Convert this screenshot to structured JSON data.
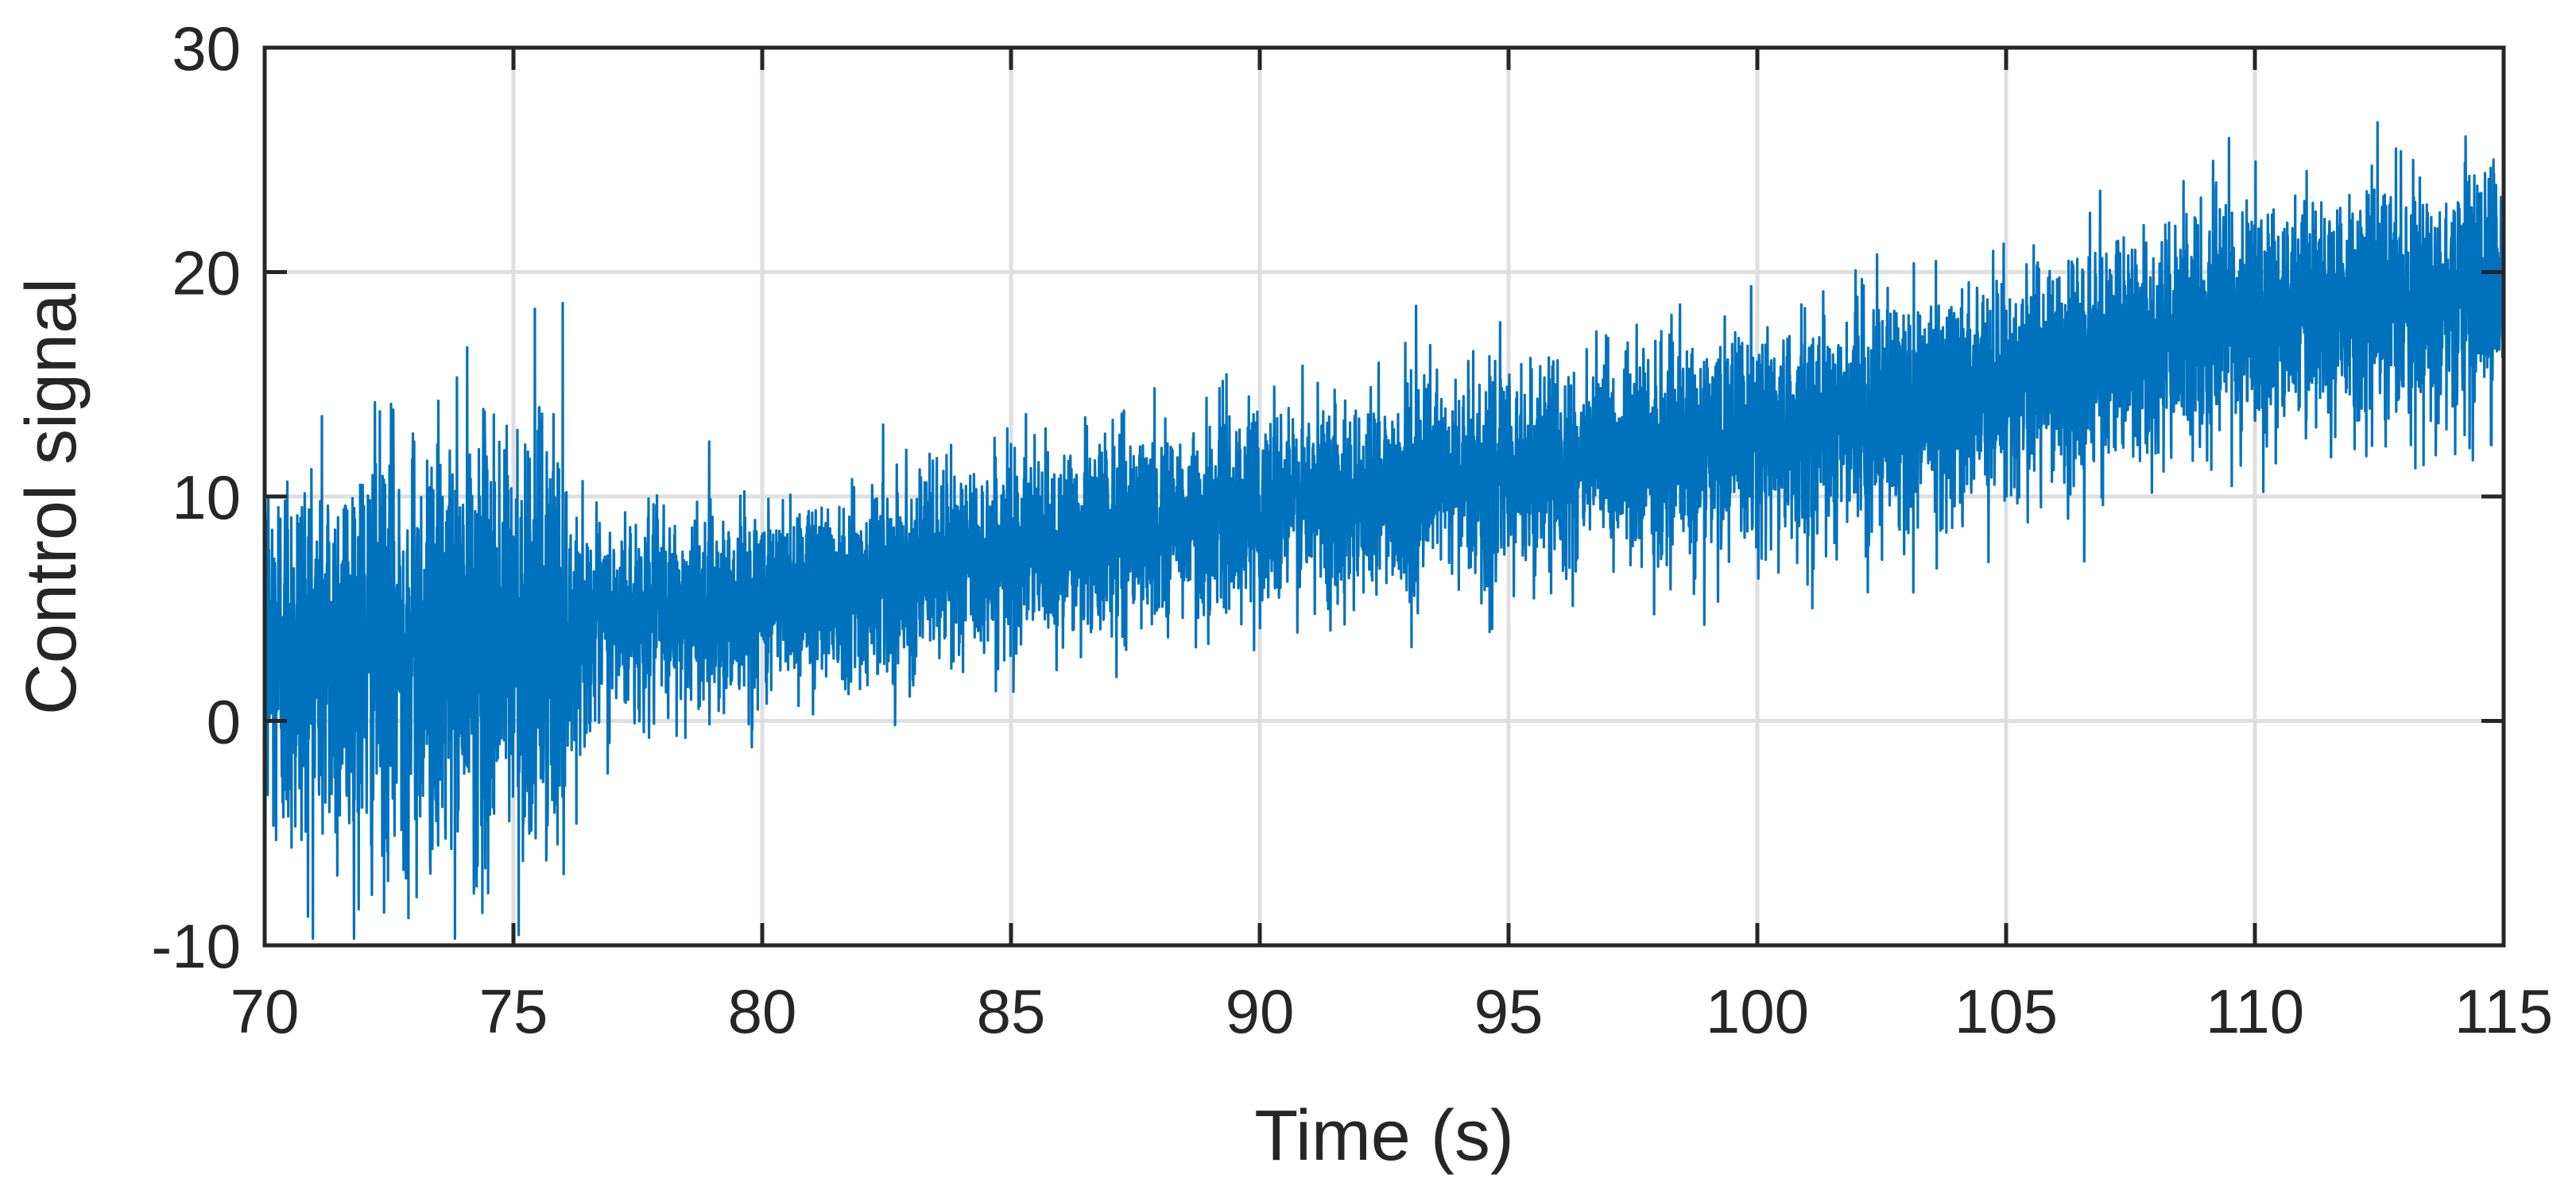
{
  "chart_data": {
    "type": "line",
    "title": "",
    "xlabel": "Time (s)",
    "ylabel": "Control signal",
    "xlim": [
      70,
      115
    ],
    "ylim": [
      -10,
      30
    ],
    "xticks": [
      70,
      75,
      80,
      85,
      90,
      95,
      100,
      105,
      110,
      115
    ],
    "yticks": [
      -10,
      0,
      10,
      20,
      30
    ],
    "xtick_labels": [
      "70",
      "75",
      "80",
      "85",
      "90",
      "95",
      "100",
      "105",
      "110",
      "115"
    ],
    "ytick_labels": [
      "-10",
      "0",
      "10",
      "20",
      "30"
    ],
    "grid": true,
    "legend": "none",
    "series": [
      {
        "color": "#0072bd",
        "style": "dense noisy signal",
        "trend_x": [
          70,
          73,
          76,
          80,
          85,
          90,
          95,
          100,
          105,
          110,
          115
        ],
        "trend_y": [
          3,
          3,
          4,
          5.5,
          7.5,
          9.5,
          11,
          12.5,
          15,
          18,
          19.5
        ],
        "spread_x": [
          70,
          76,
          76.2,
          80,
          85,
          95,
          105,
          110,
          115
        ],
        "spread_y": [
          6,
          6.5,
          3,
          2.8,
          2.8,
          3,
          3.2,
          3.4,
          3.5
        ]
      }
    ]
  }
}
